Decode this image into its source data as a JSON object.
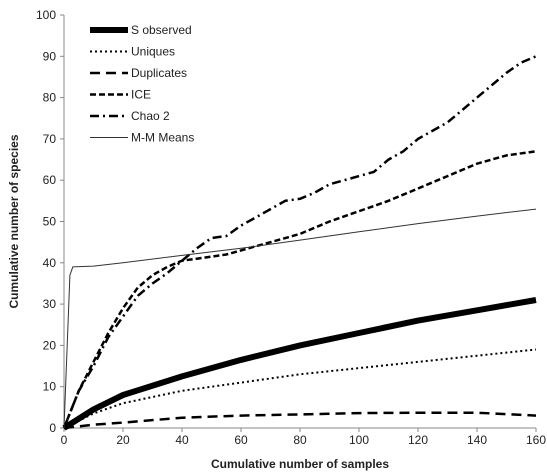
{
  "chart_data": {
    "type": "line",
    "xlabel": "Cumulative number of samples",
    "ylabel": "Cumulative number of species",
    "xlim": [
      0,
      160
    ],
    "ylim": [
      0,
      100
    ],
    "xticks": [
      "0",
      "20",
      "40",
      "60",
      "80",
      "100",
      "120",
      "140",
      "160"
    ],
    "yticks": [
      "0",
      "10",
      "20",
      "30",
      "40",
      "50",
      "60",
      "70",
      "80",
      "90",
      "100"
    ],
    "grid": false,
    "legend_position": "top-left",
    "series": [
      {
        "name": "S observed",
        "style": "thick-solid",
        "color": "#000000",
        "x": [
          0,
          10,
          20,
          40,
          60,
          80,
          100,
          120,
          140,
          160
        ],
        "y": [
          0,
          4.5,
          8,
          12.5,
          16.5,
          20,
          23,
          26,
          28.5,
          31
        ]
      },
      {
        "name": "Uniques",
        "style": "dotted",
        "color": "#000000",
        "x": [
          0,
          10,
          20,
          40,
          60,
          80,
          100,
          120,
          140,
          160
        ],
        "y": [
          0,
          3.5,
          6,
          9,
          11,
          13,
          14.5,
          16,
          17.5,
          19
        ]
      },
      {
        "name": "Duplicates",
        "style": "long-dash",
        "color": "#000000",
        "x": [
          0,
          10,
          20,
          40,
          60,
          80,
          100,
          120,
          140,
          160
        ],
        "y": [
          0,
          0.8,
          1.3,
          2.5,
          3,
          3.3,
          3.6,
          3.7,
          3.7,
          3
        ]
      },
      {
        "name": "ICE",
        "style": "dashed",
        "color": "#000000",
        "x": [
          0,
          5,
          10,
          15,
          20,
          25,
          30,
          35,
          40,
          45,
          50,
          55,
          60,
          70,
          80,
          90,
          100,
          110,
          120,
          130,
          140,
          150,
          160
        ],
        "y": [
          0,
          9,
          16,
          23,
          29,
          34,
          37,
          39,
          40.5,
          41,
          41.5,
          42,
          43,
          45,
          47,
          50,
          52.5,
          55,
          58,
          61,
          64,
          66,
          67
        ]
      },
      {
        "name": "Chao 2",
        "style": "dash-dot",
        "color": "#000000",
        "x": [
          0,
          5,
          10,
          15,
          20,
          25,
          30,
          35,
          40,
          45,
          50,
          55,
          60,
          65,
          70,
          75,
          80,
          85,
          90,
          95,
          100,
          105,
          110,
          115,
          120,
          125,
          130,
          135,
          140,
          145,
          150,
          155,
          160
        ],
        "y": [
          0,
          9,
          15,
          22,
          27,
          32,
          35,
          37.5,
          40.5,
          43.5,
          46,
          46.5,
          49,
          51,
          53,
          55,
          55.5,
          57,
          59,
          60,
          61,
          62,
          65,
          67,
          70,
          72,
          74,
          77,
          80,
          83,
          86,
          88.5,
          90
        ]
      },
      {
        "name": "M-M Means",
        "style": "thin-solid",
        "color": "#333333",
        "x": [
          0,
          2,
          3,
          10,
          20,
          40,
          60,
          80,
          100,
          120,
          140,
          160
        ],
        "y": [
          0,
          37,
          39,
          39.2,
          40,
          41.8,
          43.5,
          45.5,
          47.5,
          49.5,
          51.3,
          53
        ]
      }
    ]
  }
}
